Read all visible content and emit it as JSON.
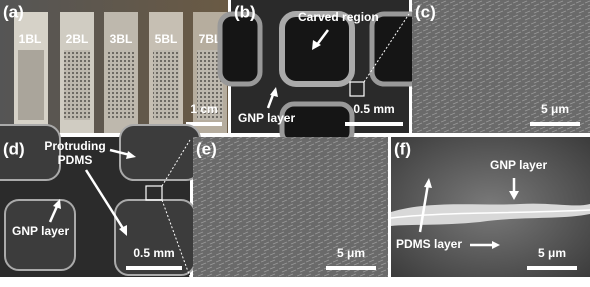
{
  "panels": [
    {
      "label": "(a)",
      "strips": [
        "1BL",
        "2BL",
        "3BL",
        "5BL",
        "7BL"
      ],
      "scale": "1 cm"
    },
    {
      "label": "(b)",
      "texts": [
        "Carved region",
        "GNP layer"
      ],
      "scale": "0.5 mm"
    },
    {
      "label": "(c)",
      "scale": "5 μm"
    },
    {
      "label": "(d)",
      "texts": [
        "Protruding",
        "PDMS",
        "GNP layer"
      ],
      "scale": "0.5 mm"
    },
    {
      "label": "(e)",
      "scale": "5 μm"
    },
    {
      "label": "(f)",
      "texts": [
        "GNP layer",
        "PDMS layer"
      ],
      "scale": "5 μm"
    }
  ]
}
